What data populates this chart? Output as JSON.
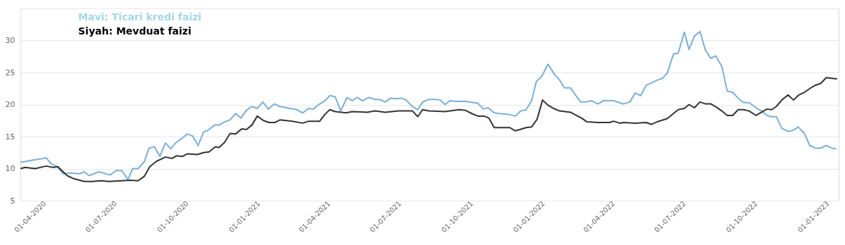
{
  "chart_data": {
    "type": "line",
    "annotations": [
      "Mavi: Ticari kredi faizi",
      "Siyah: Mevduat faizi"
    ],
    "series": [
      {
        "color": "#7aafd8",
        "x": [
          "2020-03-01",
          "2020-03-07",
          "2020-03-15",
          "2020-03-27",
          "2020-04-03",
          "2020-04-09",
          "2020-04-17",
          "2020-04-25",
          "2020-05-03",
          "2020-05-16",
          "2020-05-22",
          "2020-05-28",
          "2020-06-10",
          "2020-06-24",
          "2020-07-02",
          "2020-07-09",
          "2020-07-17",
          "2020-07-23",
          "2020-07-30",
          "2020-08-07",
          "2020-08-13",
          "2020-08-20",
          "2020-08-27",
          "2020-09-03",
          "2020-09-10",
          "2020-09-17",
          "2020-09-25",
          "2020-10-01",
          "2020-10-08",
          "2020-10-15",
          "2020-10-22",
          "2020-10-28",
          "2020-11-05",
          "2020-11-11",
          "2020-11-18",
          "2020-11-25",
          "2020-12-02",
          "2020-12-09",
          "2020-12-16",
          "2020-12-23",
          "2020-12-30",
          "2021-01-06",
          "2021-01-13",
          "2021-01-21",
          "2021-01-28",
          "2021-02-10",
          "2021-02-19",
          "2021-02-26",
          "2021-03-06",
          "2021-03-12",
          "2021-03-20",
          "2021-03-27",
          "2021-04-02",
          "2021-04-09",
          "2021-04-16",
          "2021-04-24",
          "2021-05-01",
          "2021-05-07",
          "2021-05-14",
          "2021-05-22",
          "2021-05-30",
          "2021-06-05",
          "2021-06-12",
          "2021-06-19",
          "2021-06-27",
          "2021-07-03",
          "2021-07-09",
          "2021-07-17",
          "2021-07-24",
          "2021-07-30",
          "2021-08-07",
          "2021-08-16",
          "2021-08-22",
          "2021-08-28",
          "2021-09-03",
          "2021-09-11",
          "2021-09-24",
          "2021-10-09",
          "2021-10-16",
          "2021-10-22",
          "2021-10-30",
          "2021-11-05",
          "2021-11-16",
          "2021-11-26",
          "2021-12-03",
          "2021-12-10",
          "2021-12-17",
          "2021-12-23",
          "2021-12-30",
          "2022-01-07",
          "2022-01-16",
          "2022-01-22",
          "2022-01-28",
          "2022-02-05",
          "2022-02-13",
          "2022-02-18",
          "2022-02-25",
          "2022-03-04",
          "2022-03-12",
          "2022-03-19",
          "2022-04-01",
          "2022-04-14",
          "2022-04-22",
          "2022-04-29",
          "2022-05-06",
          "2022-05-13",
          "2022-05-20",
          "2022-05-27",
          "2022-06-03",
          "2022-06-09",
          "2022-06-17",
          "2022-06-23",
          "2022-07-01",
          "2022-07-07",
          "2022-07-14",
          "2022-07-21",
          "2022-07-28",
          "2022-08-04",
          "2022-08-10",
          "2022-08-18",
          "2022-08-25",
          "2022-09-01",
          "2022-09-08",
          "2022-09-15",
          "2022-09-22",
          "2022-10-01",
          "2022-10-08",
          "2022-10-15",
          "2022-10-21",
          "2022-10-27",
          "2022-11-03",
          "2022-11-11",
          "2022-11-18",
          "2022-11-24",
          "2022-12-02",
          "2022-12-09",
          "2022-12-16",
          "2022-12-23",
          "2022-12-30",
          "2023-01-06",
          "2023-01-12"
        ],
        "values": [
          11.0,
          11.1,
          11.3,
          11.5,
          11.7,
          10.8,
          10.3,
          9.2,
          9.3,
          9.2,
          9.5,
          8.9,
          9.5,
          9.0,
          9.7,
          9.7,
          8.3,
          10.0,
          10.0,
          11.1,
          13.2,
          13.4,
          11.9,
          14.0,
          13.1,
          14.1,
          14.8,
          15.4,
          15.1,
          13.6,
          15.7,
          16.0,
          16.8,
          16.8,
          17.3,
          17.6,
          18.6,
          17.9,
          19.1,
          19.7,
          19.4,
          20.4,
          19.3,
          20.1,
          19.7,
          19.4,
          19.2,
          18.7,
          19.4,
          19.3,
          20.1,
          20.6,
          21.4,
          21.2,
          19.0,
          21.1,
          20.6,
          21.1,
          20.6,
          21.1,
          20.8,
          20.8,
          20.4,
          21.0,
          20.9,
          21.0,
          20.7,
          19.7,
          19.2,
          20.4,
          20.8,
          20.8,
          20.7,
          20.0,
          20.6,
          20.5,
          20.5,
          20.2,
          19.3,
          19.5,
          18.7,
          18.6,
          18.5,
          18.2,
          19.0,
          19.2,
          20.6,
          23.6,
          24.4,
          26.3,
          24.6,
          23.8,
          22.6,
          22.6,
          21.2,
          20.4,
          20.4,
          20.6,
          20.1,
          20.6,
          20.6,
          20.1,
          20.4,
          21.8,
          21.4,
          23.0,
          23.4,
          23.8,
          24.1,
          24.9,
          27.9,
          28.0,
          31.3,
          28.6,
          30.7,
          31.4,
          28.5,
          27.2,
          27.6,
          26.0,
          22.1,
          21.9,
          21.0,
          20.3,
          20.3,
          19.5,
          19.0,
          18.3,
          18.1,
          18.1,
          16.3,
          15.8,
          16.0,
          16.5,
          15.5,
          13.6,
          13.2,
          13.2,
          13.6,
          13.2,
          13.1
        ]
      },
      {
        "color": "#333333",
        "x": [
          "2020-03-01",
          "2020-03-07",
          "2020-03-20",
          "2020-04-03",
          "2020-04-12",
          "2020-04-18",
          "2020-04-30",
          "2020-05-09",
          "2020-05-22",
          "2020-06-01",
          "2020-06-12",
          "2020-06-23",
          "2020-07-08",
          "2020-07-20",
          "2020-07-30",
          "2020-08-07",
          "2020-08-14",
          "2020-08-22",
          "2020-09-03",
          "2020-09-12",
          "2020-09-17",
          "2020-09-25",
          "2020-10-01",
          "2020-10-14",
          "2020-10-22",
          "2020-10-29",
          "2020-11-06",
          "2020-11-11",
          "2020-11-18",
          "2020-11-25",
          "2020-12-02",
          "2020-12-10",
          "2020-12-16",
          "2020-12-23",
          "2020-12-30",
          "2021-01-07",
          "2021-01-14",
          "2021-01-22",
          "2021-01-28",
          "2021-02-13",
          "2021-02-26",
          "2021-03-06",
          "2021-03-20",
          "2021-03-27",
          "2021-04-02",
          "2021-04-09",
          "2021-04-23",
          "2021-05-01",
          "2021-05-20",
          "2021-05-30",
          "2021-06-12",
          "2021-06-29",
          "2021-07-17",
          "2021-07-24",
          "2021-07-30",
          "2021-08-07",
          "2021-08-28",
          "2021-09-15",
          "2021-09-23",
          "2021-10-01",
          "2021-10-09",
          "2021-10-17",
          "2021-10-23",
          "2021-10-30",
          "2021-11-05",
          "2021-11-19",
          "2021-11-26",
          "2021-12-02",
          "2021-12-10",
          "2021-12-17",
          "2021-12-24",
          "2021-12-31",
          "2022-01-07",
          "2022-01-14",
          "2022-01-22",
          "2022-01-29",
          "2022-02-05",
          "2022-02-11",
          "2022-02-19",
          "2022-02-26",
          "2022-03-12",
          "2022-03-27",
          "2022-04-01",
          "2022-04-09",
          "2022-04-14",
          "2022-04-29",
          "2022-05-13",
          "2022-05-20",
          "2022-05-27",
          "2022-06-09",
          "2022-06-17",
          "2022-06-23",
          "2022-07-01",
          "2022-07-07",
          "2022-07-14",
          "2022-07-21",
          "2022-07-28",
          "2022-08-04",
          "2022-08-11",
          "2022-08-18",
          "2022-08-25",
          "2022-09-01",
          "2022-09-08",
          "2022-09-15",
          "2022-09-22",
          "2022-10-01",
          "2022-10-08",
          "2022-10-15",
          "2022-10-21",
          "2022-10-27",
          "2022-11-03",
          "2022-11-11",
          "2022-11-18",
          "2022-11-25",
          "2022-12-02",
          "2022-12-09",
          "2022-12-16",
          "2022-12-23",
          "2022-12-30",
          "2023-01-06",
          "2023-01-13"
        ],
        "values": [
          10.0,
          10.2,
          10.0,
          10.4,
          10.2,
          10.3,
          8.9,
          8.4,
          8.0,
          8.0,
          8.1,
          8.0,
          8.1,
          8.2,
          8.1,
          8.8,
          10.3,
          11.1,
          11.8,
          11.6,
          12.0,
          11.9,
          12.3,
          12.2,
          12.5,
          12.6,
          13.4,
          13.3,
          14.1,
          15.5,
          15.4,
          16.2,
          16.1,
          16.8,
          18.2,
          17.5,
          17.2,
          17.2,
          17.6,
          17.4,
          17.1,
          17.4,
          17.4,
          18.5,
          19.2,
          18.9,
          18.7,
          18.9,
          18.8,
          19.0,
          18.8,
          19.0,
          19.0,
          18.1,
          19.2,
          19.0,
          18.9,
          19.2,
          19.1,
          18.6,
          18.2,
          18.2,
          17.9,
          16.4,
          16.4,
          16.4,
          15.9,
          16.1,
          16.4,
          16.5,
          17.7,
          20.7,
          19.9,
          19.4,
          19.0,
          18.9,
          18.8,
          18.4,
          17.9,
          17.3,
          17.2,
          17.2,
          17.4,
          17.1,
          17.2,
          17.1,
          17.2,
          16.9,
          17.3,
          17.8,
          18.6,
          19.2,
          19.4,
          20.0,
          19.5,
          20.4,
          20.1,
          20.1,
          19.6,
          19.0,
          18.3,
          18.3,
          19.2,
          19.2,
          19.0,
          18.3,
          18.8,
          19.3,
          19.2,
          19.7,
          20.7,
          21.5,
          20.7,
          21.5,
          21.9,
          22.5,
          23.0,
          23.3,
          24.2,
          24.1,
          24.0
        ]
      }
    ],
    "xlim": [
      "2020-03-01",
      "2023-01-15"
    ],
    "xticks": [
      {
        "value": "2020-04-01",
        "label": "01-04-2020"
      },
      {
        "value": "2020-07-01",
        "label": "01-07-2020"
      },
      {
        "value": "2020-10-01",
        "label": "01-10-2020"
      },
      {
        "value": "2021-01-01",
        "label": "01-01-2021"
      },
      {
        "value": "2021-04-01",
        "label": "01-04-2021"
      },
      {
        "value": "2021-07-01",
        "label": "01-07-2021"
      },
      {
        "value": "2021-10-01",
        "label": "01-10-2021"
      },
      {
        "value": "2022-01-01",
        "label": "01-01-2022"
      },
      {
        "value": "2022-04-01",
        "label": "01-04-2022"
      },
      {
        "value": "2022-07-01",
        "label": "01-07-2022"
      },
      {
        "value": "2022-10-01",
        "label": "01-10-2022"
      },
      {
        "value": "2023-01-01",
        "label": "01-01-2023"
      }
    ],
    "ylim": [
      5,
      35
    ],
    "yticks": [
      5,
      10,
      15,
      20,
      25,
      30,
      {
        "value": 35,
        "label": null
      }
    ],
    "grid": "y",
    "marker": "none",
    "line_style": "solid"
  }
}
